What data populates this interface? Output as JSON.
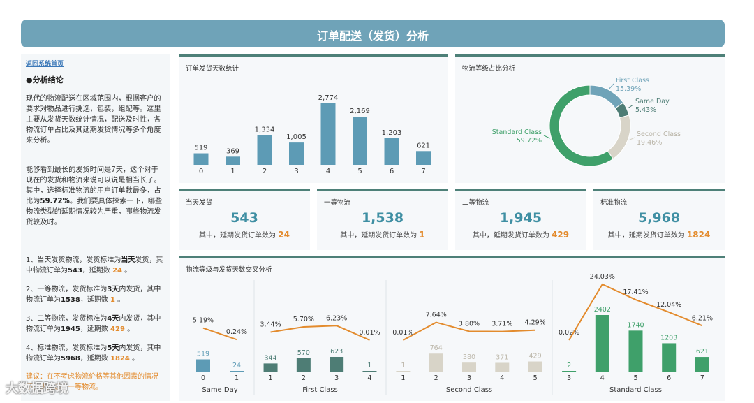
{
  "header": {
    "title": "订单配送（发货）分析"
  },
  "sidebar": {
    "home_link": "返回系统首页",
    "section_title": "●分析结论",
    "para1": "现代的物流配送在区域范围内，根据客户的要求对物品进行挑选，包装，组配等。这里主要从发货天数统计情况，配送及时性，各物流订单占比及其延期发货情况等多个角度来分析。",
    "para2_a": "能够看到最长的发货时间是7天，这个对于现在的发货和物流来说可以说是相当长了。其中，选择标准物流的用户订单数最多，占比为",
    "para2_b": "59.72%",
    "para2_c": "。我们要具体探索一下，哪些物流类型的延期情况较为严重，哪些物流发货较及时。",
    "notes": [
      {
        "a": "1、当天发货物流，发货标准为",
        "b": "当天",
        "c": "发货，其中物流订单为",
        "d": "543",
        "e": "，延期数 ",
        "f": "24",
        "g": " 。"
      },
      {
        "a": "2、一等物流，发货标准为",
        "b": "3天",
        "c": "内发货，其中物流订单为",
        "d": "1538",
        "e": "，延期数 ",
        "f": "1",
        "g": " 。"
      },
      {
        "a": "3、二等物流，发货标准为",
        "b": "4天",
        "c": "内发货，其中物流订单为",
        "d": "1945",
        "e": "，延期数 ",
        "f": "429",
        "g": " 。"
      },
      {
        "a": "4、标准物流，发货标准为",
        "b": "5天",
        "c": "内发货，其中物流订单为",
        "d": "5968",
        "e": "，延期数 ",
        "f": "1824",
        "g": " 。"
      }
    ],
    "warning": "建议：在不考虑物流价格等其他因素的情况下，优先选择一等物流。"
  },
  "kpis": [
    {
      "title": "当天发货",
      "value": "543",
      "sub": "其中，延期发货订单数为",
      "delay": "24"
    },
    {
      "title": "一等物流",
      "value": "1,538",
      "sub": "其中，延期发货订单数为",
      "delay": "1"
    },
    {
      "title": "二等物流",
      "value": "1,945",
      "sub": "其中，延期发货订单数为",
      "delay": "429"
    },
    {
      "title": "标准物流",
      "value": "5,968",
      "sub": "其中，延期发货订单数为",
      "delay": "1824"
    }
  ],
  "chart_titles": {
    "days": "订单发货天数统计",
    "pie": "物流等级占比分析",
    "cross": "物流等级与发货天数交叉分析"
  },
  "watermark": "大数据跨境",
  "colors": {
    "teal": "#6fa3b8",
    "bar": "#5d9bb5",
    "line": "#e38b2d",
    "standard": "#3fa06a",
    "first": "#4e7d75",
    "second": "#d8d4c8",
    "sameday": "#5d9bb5"
  },
  "chart_data": [
    {
      "type": "bar",
      "title": "订单发货天数统计",
      "categories": [
        "0",
        "1",
        "2",
        "3",
        "4",
        "5",
        "6",
        "7"
      ],
      "values": [
        519,
        369,
        1334,
        1005,
        2774,
        2169,
        1203,
        621
      ],
      "labels": [
        "519",
        "369",
        "1,334",
        "1,005",
        "2,774",
        "2,169",
        "1,203",
        "621"
      ]
    },
    {
      "type": "pie",
      "title": "物流等级占比分析",
      "slices": [
        {
          "name": "First Class",
          "value": 15.39,
          "label": "15.39%",
          "color": "#6fa3b8"
        },
        {
          "name": "Same Day",
          "value": 5.43,
          "label": "5.43%",
          "color": "#4e7d75"
        },
        {
          "name": "Second Class",
          "value": 19.46,
          "label": "19.46%",
          "color": "#d8d4c8"
        },
        {
          "name": "Standard Class",
          "value": 59.72,
          "label": "59.72%",
          "color": "#3fa06a"
        }
      ]
    },
    {
      "type": "bar",
      "title": "物流等级与发货天数交叉分析",
      "groups": [
        {
          "name": "Same Day",
          "days": [
            "0",
            "1"
          ],
          "values": [
            519,
            24
          ],
          "pcts": [
            "5.19%",
            "0.24%"
          ],
          "color": "#5d9bb5"
        },
        {
          "name": "First Class",
          "days": [
            "1",
            "2",
            "3",
            "4"
          ],
          "values": [
            344,
            570,
            623,
            1
          ],
          "pcts": [
            "3.44%",
            "5.70%",
            "6.23%",
            "0.01%"
          ],
          "color": "#4e7d75"
        },
        {
          "name": "Second Class",
          "days": [
            "1",
            "2",
            "3",
            "4",
            "5"
          ],
          "values": [
            1,
            764,
            380,
            371,
            429
          ],
          "pcts": [
            "0.01%",
            "7.64%",
            "3.80%",
            "3.71%",
            "4.29%"
          ],
          "color": "#d8d4c8"
        },
        {
          "name": "Standard Class",
          "days": [
            "3",
            "4",
            "5",
            "6",
            "7"
          ],
          "values": [
            2,
            2402,
            1740,
            1203,
            621
          ],
          "pcts": [
            "0.02%",
            "24.03%",
            "17.41%",
            "12.04%",
            "6.21%"
          ],
          "color": "#3fa06a"
        }
      ]
    }
  ]
}
